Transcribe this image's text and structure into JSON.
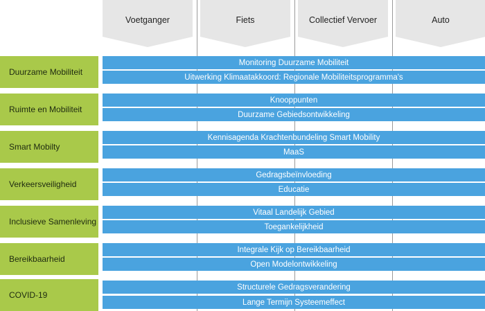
{
  "columns": [
    "Voetganger",
    "Fiets",
    "Collectief Vervoer",
    "Auto"
  ],
  "rows": [
    {
      "label": "Duurzame Mobiliteit",
      "items": [
        "Monitoring Duurzame Mobiliteit",
        "Uitwerking Klimaatakkoord: Regionale Mobiliteitsprogramma's"
      ]
    },
    {
      "label": "Ruimte en Mobiliteit",
      "items": [
        "Knooppunten",
        "Duurzame Gebiedsontwikkeling"
      ]
    },
    {
      "label": "Smart Mobilty",
      "items": [
        "Kennisagenda Krachtenbundeling Smart Mobility",
        "MaaS"
      ]
    },
    {
      "label": "Verkeersveiligheid",
      "items": [
        "Gedragsbeïnvloeding",
        "Educatie"
      ]
    },
    {
      "label": "Inclusieve Samenleving",
      "items": [
        "Vitaal Landelijk Gebied",
        "Toegankelijkheid"
      ]
    },
    {
      "label": "Bereikbaarheid",
      "items": [
        "Integrale Kijk op Bereikbaarheid",
        "Open Modelontwikkeling"
      ]
    },
    {
      "label": "COVID-19",
      "items": [
        "Structurele Gedragsverandering",
        "Lange Termijn Systeemeffect"
      ]
    }
  ],
  "colors": {
    "label_bg": "#a9c94a",
    "bar_bg": "#4aa3df",
    "header_bg": "#e6e6e6"
  }
}
